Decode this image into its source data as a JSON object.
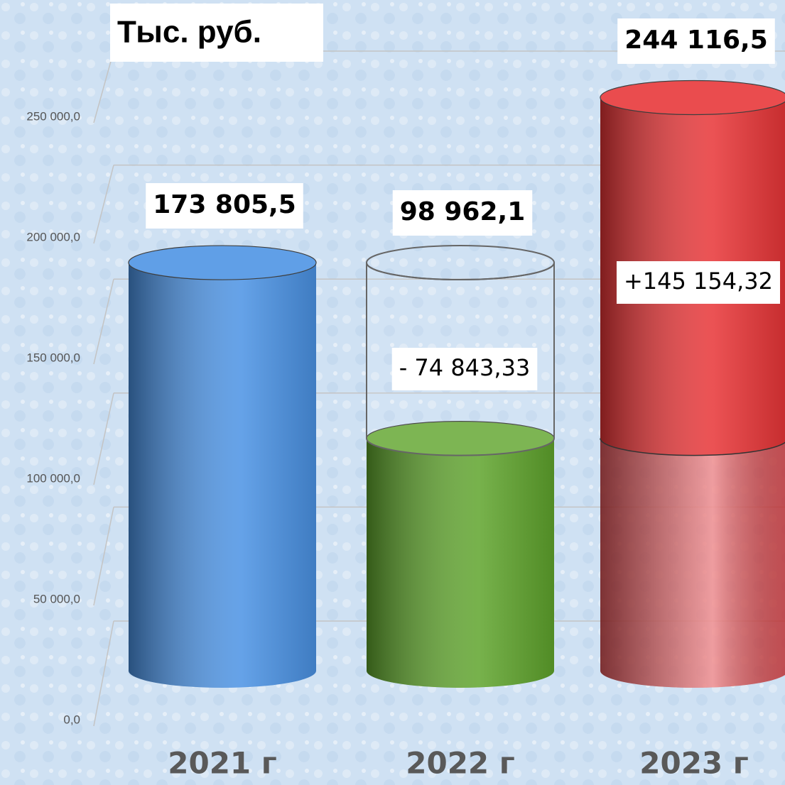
{
  "chart_data": {
    "type": "cylinder",
    "title": "Тыс. руб.",
    "categories": [
      "2021 г",
      "2022 г",
      "2023 г"
    ],
    "values": [
      173805.5,
      98962.1,
      244116.5
    ],
    "value_labels": [
      "173 805,5",
      "98 962,1",
      "244 116,5"
    ],
    "colors": [
      "#4a92e4",
      "#5fa42c",
      "#e83436"
    ],
    "changes": [
      null,
      -74843.33,
      145154.32
    ],
    "change_labels": [
      null,
      "- 74 843,33",
      "+145 154,32"
    ],
    "ylim": [
      0,
      250000
    ],
    "yticks": [
      {
        "value": 0,
        "label": "0,0"
      },
      {
        "value": 50000,
        "label": "50 000,0"
      },
      {
        "value": 100000,
        "label": "100 000,0"
      },
      {
        "value": 150000,
        "label": "150 000,0"
      },
      {
        "value": 200000,
        "label": "200 000,0"
      },
      {
        "value": 250000,
        "label": "250 000,0"
      }
    ],
    "grid": true
  }
}
